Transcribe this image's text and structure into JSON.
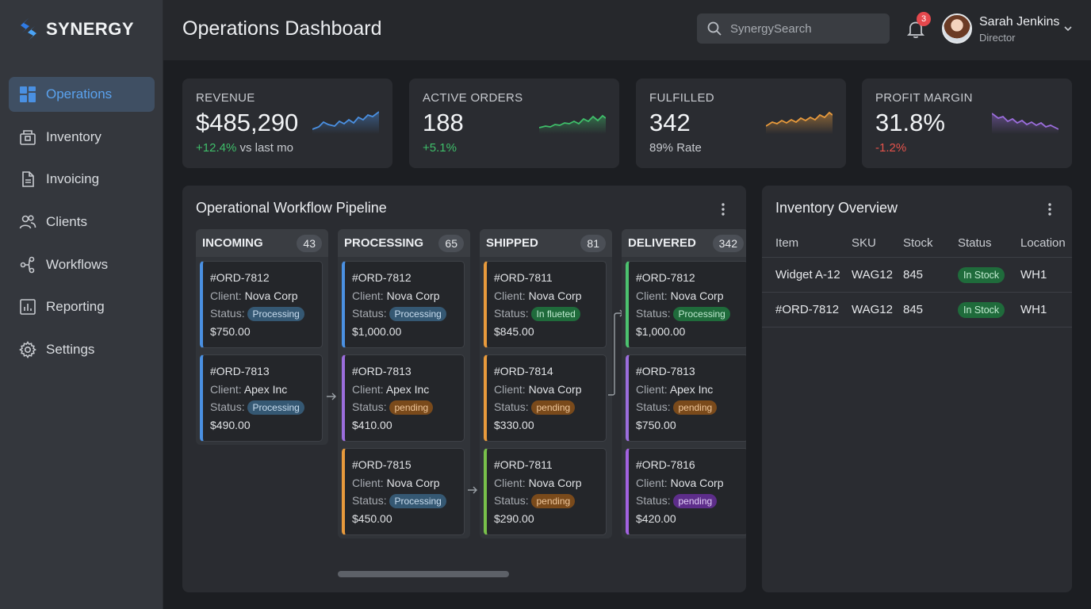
{
  "brand": {
    "name": "SYNERGY",
    "colors": {
      "blue": "#3b82f6",
      "accent": "#5aa2ee"
    }
  },
  "sidebar": {
    "items": [
      {
        "label": "Operations",
        "icon": "grid-icon",
        "active": true
      },
      {
        "label": "Inventory",
        "icon": "box-icon",
        "active": false
      },
      {
        "label": "Invoicing",
        "icon": "document-icon",
        "active": false
      },
      {
        "label": "Clients",
        "icon": "users-icon",
        "active": false
      },
      {
        "label": "Workflows",
        "icon": "flow-icon",
        "active": false
      },
      {
        "label": "Reporting",
        "icon": "chart-icon",
        "active": false
      },
      {
        "label": "Settings",
        "icon": "gear-icon",
        "active": false
      }
    ]
  },
  "header": {
    "title": "Operations Dashboard",
    "search_placeholder": "SynergySearch",
    "notification_count": "3",
    "user": {
      "name": "Sarah Jenkins",
      "role": "Director"
    }
  },
  "kpis": [
    {
      "label": "REVENUE",
      "value": "$485,290",
      "delta": "+12.4%",
      "delta_suffix": " vs last mo",
      "trend": "positive",
      "spark_color": "#4a90e2"
    },
    {
      "label": "ACTIVE ORDERS",
      "value": "188",
      "delta": "+5.1%",
      "delta_suffix": "",
      "trend": "positive",
      "spark_color": "#3fbf6a"
    },
    {
      "label": "FULFILLED",
      "value": "342",
      "delta": "89% Rate",
      "delta_suffix": "",
      "trend": "neutral",
      "spark_color": "#e89a3c"
    },
    {
      "label": "PROFIT MARGIN",
      "value": "31.8%",
      "delta": "-1.2%",
      "delta_suffix": "",
      "trend": "negative",
      "spark_color": "#9b6ddc"
    }
  ],
  "pipeline": {
    "title": "Operational Workflow Pipeline",
    "card_labels": {
      "client": "Client:",
      "status": "Status:"
    },
    "columns": [
      {
        "name": "INCOMING",
        "count": "43",
        "cards": [
          {
            "id": "#ORD-7812",
            "client": "Nova Corp",
            "status": "Processing",
            "amount": "$750.00"
          },
          {
            "id": "#ORD-7813",
            "client": "Apex Inc",
            "status": "Processing",
            "amount": "$490.00"
          }
        ]
      },
      {
        "name": "PROCESSING",
        "count": "65",
        "cards": [
          {
            "id": "#ORD-7812",
            "client": "Nova Corp",
            "status": "Processing",
            "amount": "$1,000.00"
          },
          {
            "id": "#ORD-7813",
            "client": "Apex Inc",
            "status": "pending",
            "amount": "$410.00"
          },
          {
            "id": "#ORD-7815",
            "client": "Nova Corp",
            "status": "Processing",
            "amount": "$450.00"
          }
        ]
      },
      {
        "name": "SHIPPED",
        "count": "81",
        "cards": [
          {
            "id": "#ORD-7811",
            "client": "Nova Corp",
            "status": "In flueted",
            "amount": "$845.00"
          },
          {
            "id": "#ORD-7814",
            "client": "Nova Corp",
            "status": "pending",
            "amount": "$330.00"
          },
          {
            "id": "#ORD-7811",
            "client": "Nova Corp",
            "status": "pending",
            "amount": "$290.00"
          }
        ]
      },
      {
        "name": "DELIVERED",
        "count": "342",
        "cards": [
          {
            "id": "#ORD-7812",
            "client": "Nova Corp",
            "status": "Processing",
            "amount": "$1,000.00"
          },
          {
            "id": "#ORD-7813",
            "client": "Apex Inc",
            "status": "pending",
            "amount": "$750.00"
          },
          {
            "id": "#ORD-7816",
            "client": "Nova Corp",
            "status": "pending",
            "amount": "$420.00"
          }
        ]
      }
    ]
  },
  "inventory": {
    "title": "Inventory Overview",
    "headers": [
      "Item",
      "SKU",
      "Stock",
      "Status",
      "Location"
    ],
    "rows": [
      [
        "Widget A-12",
        "WAG12",
        "845",
        "In Stock",
        "WH1"
      ],
      [
        "#ORD-7812",
        "WAG12",
        "845",
        "In Stock",
        "WH1"
      ]
    ]
  }
}
